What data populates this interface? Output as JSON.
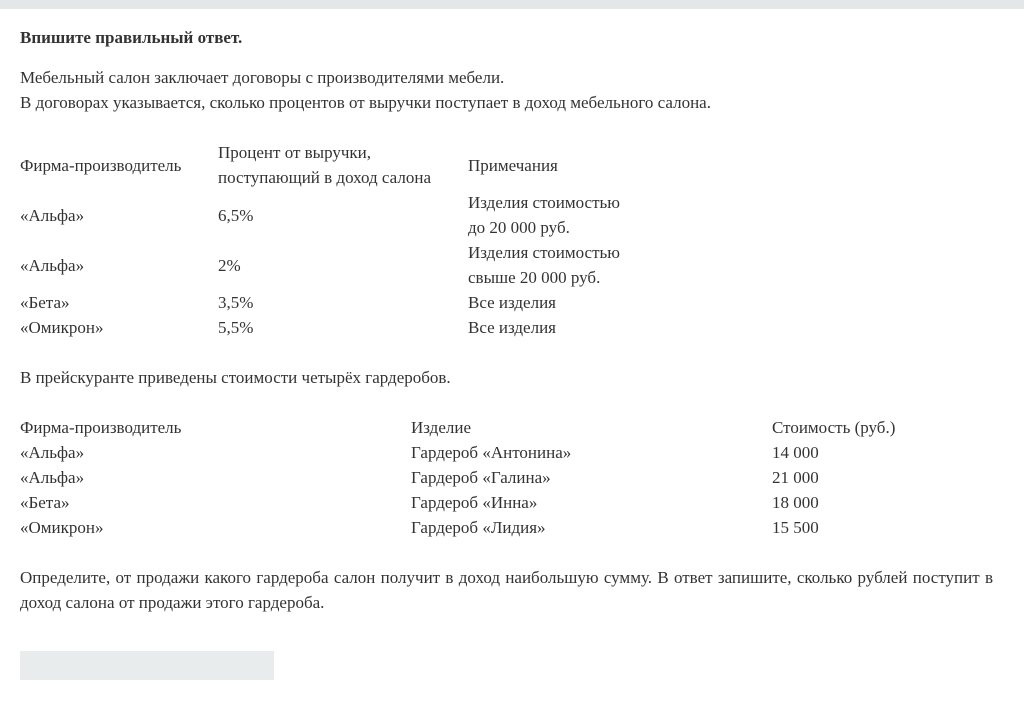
{
  "title": "Впишите правильный ответ.",
  "intro": [
    "Мебельный салон заключает договоры с производителями мебели.",
    "В договорах указывается, сколько процентов от выручки поступает в доход мебельного салона."
  ],
  "table1": {
    "headers": [
      "Фирма-производитель",
      [
        "Процент от выручки,",
        "поступающий в доход салона"
      ],
      "Примечания"
    ],
    "rows": [
      {
        "firm": "«Альфа»",
        "percent": "6,5%",
        "note": [
          "Изделия стоимостью",
          "до 20 000 руб."
        ]
      },
      {
        "firm": "«Альфа»",
        "percent": "2%",
        "note": [
          "Изделия стоимостью",
          "свыше 20 000 руб."
        ]
      },
      {
        "firm": "«Бета»",
        "percent": "3,5%",
        "note": [
          "Все изделия"
        ]
      },
      {
        "firm": "«Омикрон»",
        "percent": "5,5%",
        "note": [
          "Все изделия"
        ]
      }
    ]
  },
  "price_intro": "В прейскуранте приведены стоимости четырёх гардеробов.",
  "table2": {
    "headers": [
      "Фирма-производитель",
      "Изделие",
      "Стоимость (руб.)"
    ],
    "rows": [
      [
        "«Альфа»",
        "Гардероб «Антонина»",
        "14 000"
      ],
      [
        "«Альфа»",
        "Гардероб «Галина»",
        "21 000"
      ],
      [
        "«Бета»",
        "Гардероб «Инна»",
        "18 000"
      ],
      [
        "«Омикрон»",
        "Гардероб «Лидия»",
        "15 500"
      ]
    ]
  },
  "question": "Определите, от продажи какого гардероба салон получит в доход наибольшую сумму. В ответ запишите, сколько рублей поступит в доход салона от продажи этого гардероба.",
  "answer": {
    "value": ""
  }
}
